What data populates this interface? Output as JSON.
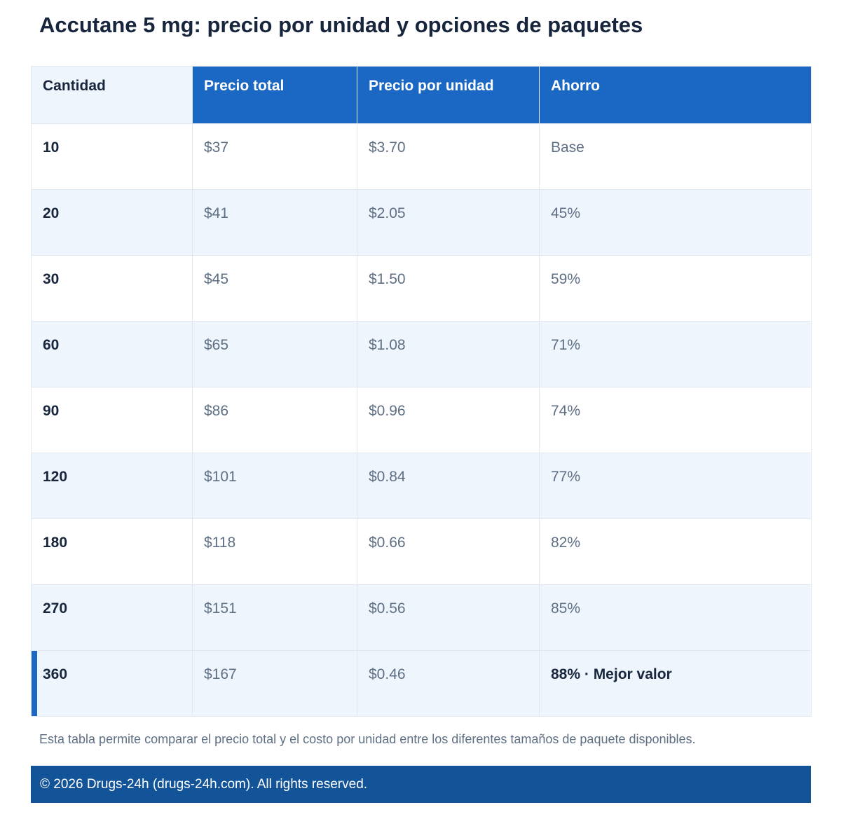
{
  "title": "Accutane 5 mg: precio por unidad y opciones de paquetes",
  "table": {
    "headers": {
      "quantity": "Cantidad",
      "total_price": "Precio total",
      "unit_price": "Precio por unidad",
      "saving": "Ahorro"
    },
    "rows": [
      {
        "quantity": "10",
        "total_price": "$37",
        "unit_price": "$3.70",
        "saving": "Base"
      },
      {
        "quantity": "20",
        "total_price": "$41",
        "unit_price": "$2.05",
        "saving": "45%"
      },
      {
        "quantity": "30",
        "total_price": "$45",
        "unit_price": "$1.50",
        "saving": "59%"
      },
      {
        "quantity": "60",
        "total_price": "$65",
        "unit_price": "$1.08",
        "saving": "71%"
      },
      {
        "quantity": "90",
        "total_price": "$86",
        "unit_price": "$0.96",
        "saving": "74%"
      },
      {
        "quantity": "120",
        "total_price": "$101",
        "unit_price": "$0.84",
        "saving": "77%"
      },
      {
        "quantity": "180",
        "total_price": "$118",
        "unit_price": "$0.66",
        "saving": "82%"
      },
      {
        "quantity": "270",
        "total_price": "$151",
        "unit_price": "$0.56",
        "saving": "85%"
      },
      {
        "quantity": "360",
        "total_price": "$167",
        "unit_price": "$0.46",
        "saving": "88% · Mejor valor"
      }
    ]
  },
  "note": "Esta tabla permite comparar el precio total y el costo por unidad entre los diferentes tamaños de paquete disponibles.",
  "footer": "© 2026 Drugs-24h (drugs-24h.com). All rights reserved.",
  "colors": {
    "accent": "#1a68c4",
    "footer_bg": "#135499",
    "row_alt_bg": "#eef5fd",
    "heading_text": "#17263d",
    "muted_text": "#5e6f84"
  }
}
